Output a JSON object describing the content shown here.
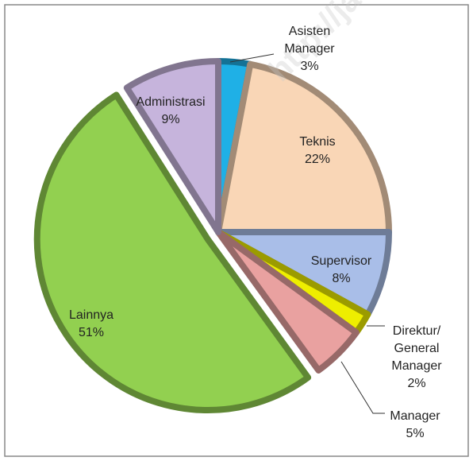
{
  "chart_data": {
    "type": "pie",
    "categories": [
      "Asisten Manager",
      "Teknis",
      "Supervisor",
      "Direktur/ General Manager",
      "Manager",
      "Lainnya",
      "Administrasi"
    ],
    "values": [
      3,
      22,
      8,
      2,
      5,
      51,
      9
    ],
    "value_labels": [
      "3%",
      "22%",
      "8%",
      "2%",
      "5%",
      "51%",
      "9%"
    ],
    "colors": [
      "#1fb0e6",
      "#f9d6b6",
      "#a9bee8",
      "#eeee00",
      "#e9a1a0",
      "#92d050",
      "#c6b4dc"
    ],
    "exploded": [
      "Lainnya"
    ],
    "watermark": "http://ja"
  }
}
